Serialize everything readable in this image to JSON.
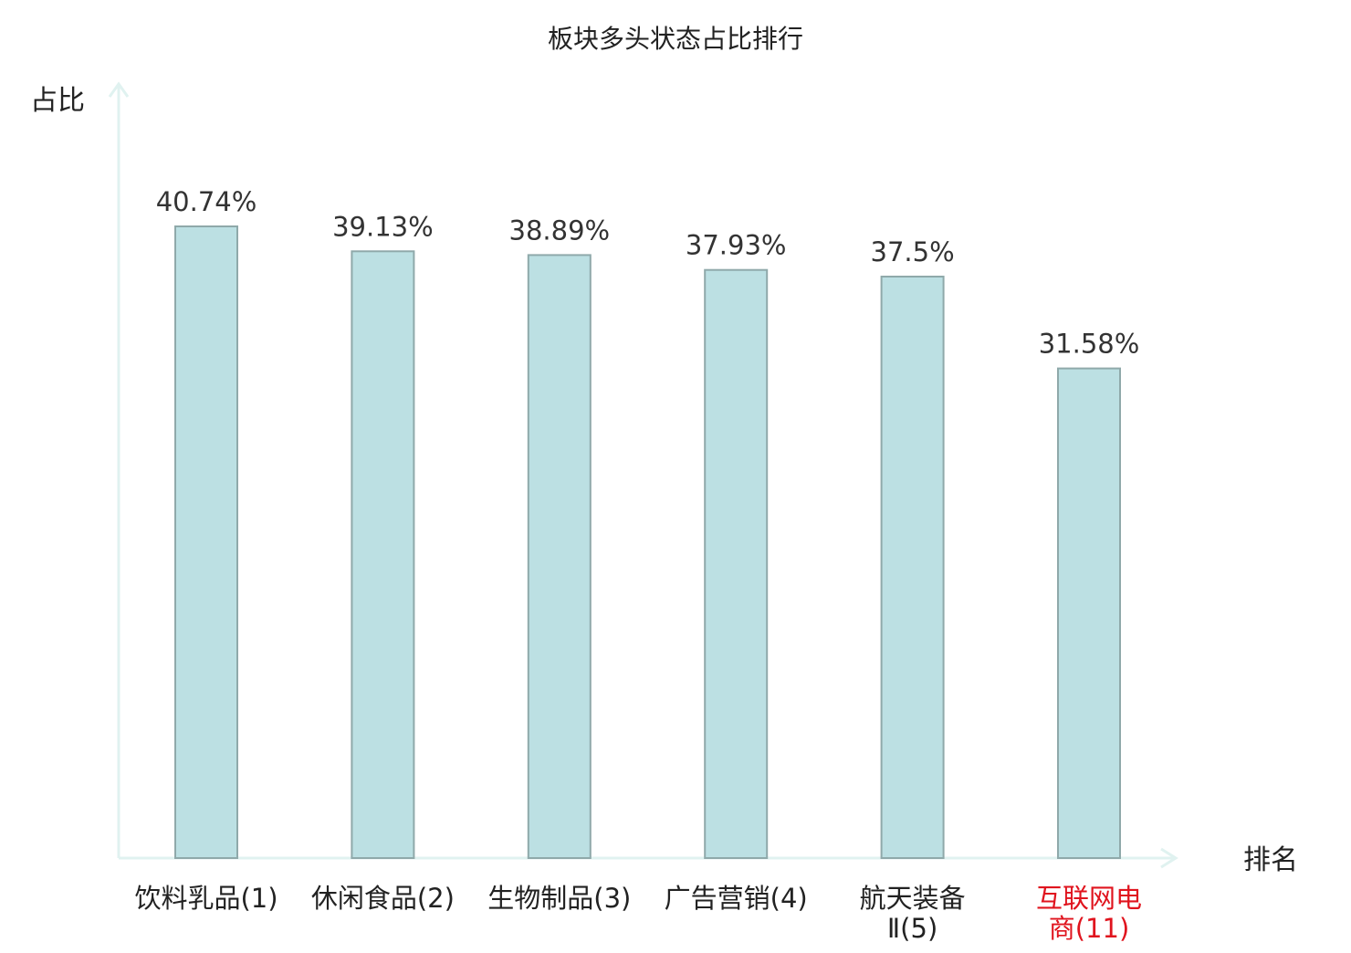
{
  "chart_data": {
    "type": "bar",
    "title": "板块多头状态占比排行",
    "ylabel": "占比",
    "xlabel": "排名",
    "categories": [
      {
        "lines": [
          "饮料乳品(1)"
        ],
        "highlight": false
      },
      {
        "lines": [
          "休闲食品(2)"
        ],
        "highlight": false
      },
      {
        "lines": [
          "生物制品(3)"
        ],
        "highlight": false
      },
      {
        "lines": [
          "广告营销(4)"
        ],
        "highlight": false
      },
      {
        "lines": [
          "航天装备",
          "Ⅱ(5)"
        ],
        "highlight": false
      },
      {
        "lines": [
          "互联网电",
          "商(11)"
        ],
        "highlight": true
      }
    ],
    "values": [
      40.74,
      39.13,
      38.89,
      37.93,
      37.5,
      31.58
    ],
    "value_labels": [
      "40.74%",
      "39.13%",
      "38.89%",
      "37.93%",
      "37.5%",
      "31.58%"
    ],
    "ylim": [
      0,
      40.74
    ],
    "grid": false,
    "legend": "none",
    "colors": {
      "bar_fill": "#bce0e3",
      "bar_stroke": "#8fa9aa",
      "axis": "#e0f2f0",
      "text": "#222222",
      "value_text": "#333333",
      "highlight_text": "#e0141e"
    }
  }
}
